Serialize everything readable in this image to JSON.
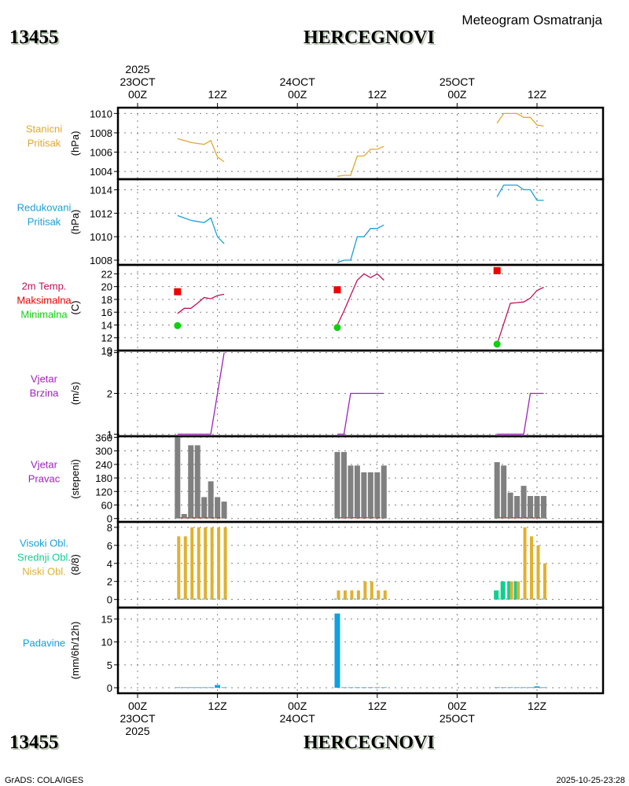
{
  "header": {
    "station_id": "13455",
    "station_name": "HERCEGNOVI",
    "subtitle": "Meteogram Osmatranja"
  },
  "footer": {
    "credit": "GrADS: COLA/IGES",
    "timestamp": "2025-10-25-23:28"
  },
  "colors": {
    "stanicni": "#e0a830",
    "redukovani": "#1aa0d8",
    "temp": "#c0105a",
    "max": "#f00000",
    "min": "#10d010",
    "wind": "#a020c0",
    "dir_bar": "#808080",
    "dir_line": "#e02020",
    "cloud_high": "#1aa0d8",
    "cloud_mid": "#10d090",
    "cloud_low": "#e0b030",
    "precip": "#10a0e0",
    "title_shadow": "#b8c8b0"
  },
  "chart_data": {
    "type": "line",
    "title": "Meteogram Osmatranja",
    "x_axis": {
      "unit": "hours since 2025-10-23 00Z",
      "range": [
        -3,
        70
      ],
      "top_ticks": [
        {
          "hour": 0,
          "lines": [
            "2025",
            "23OCT",
            "00Z"
          ]
        },
        {
          "hour": 12,
          "lines": [
            "",
            "",
            "12Z"
          ]
        },
        {
          "hour": 24,
          "lines": [
            "",
            "24OCT",
            "00Z"
          ]
        },
        {
          "hour": 36,
          "lines": [
            "",
            "",
            "12Z"
          ]
        },
        {
          "hour": 48,
          "lines": [
            "",
            "25OCT",
            "00Z"
          ]
        },
        {
          "hour": 60,
          "lines": [
            "",
            "",
            "12Z"
          ]
        }
      ],
      "bottom_ticks": [
        {
          "hour": 0,
          "lines": [
            "00Z",
            "23OCT",
            "2025"
          ]
        },
        {
          "hour": 12,
          "lines": [
            "12Z",
            "",
            ""
          ]
        },
        {
          "hour": 24,
          "lines": [
            "00Z",
            "24OCT",
            ""
          ]
        },
        {
          "hour": 36,
          "lines": [
            "12Z",
            "",
            ""
          ]
        },
        {
          "hour": 48,
          "lines": [
            "00Z",
            "25OCT",
            ""
          ]
        },
        {
          "hour": 60,
          "lines": [
            "12Z",
            "",
            ""
          ]
        }
      ]
    },
    "hours": [
      6,
      7,
      8,
      9,
      10,
      11,
      12,
      13,
      30,
      31,
      32,
      33,
      34,
      35,
      36,
      37,
      54,
      55,
      56,
      57,
      58,
      59,
      60,
      61
    ],
    "panels": [
      {
        "id": "stanicni",
        "labels": [
          "Stanicni",
          "Pritisak"
        ],
        "label_colors": [
          "stanicni",
          "stanicni"
        ],
        "ylabel": "(hPa)",
        "ylim": [
          1003.2,
          1010.6
        ],
        "yticks": [
          1004,
          1006,
          1008,
          1010
        ],
        "series": [
          {
            "name": "Stanicni Pritisak",
            "kind": "line",
            "color": "stanicni",
            "values": [
              1007.4,
              1007.2,
              1007.0,
              1006.9,
              1006.8,
              1007.2,
              1005.5,
              1005.0,
              1003.5,
              1003.6,
              1003.6,
              1005.6,
              1005.6,
              1006.3,
              1006.3,
              1006.6,
              1009.0,
              1010.0,
              1010.0,
              1010.0,
              1009.6,
              1009.6,
              1008.8,
              1008.7
            ]
          }
        ]
      },
      {
        "id": "redukovani",
        "labels": [
          "Redukovani",
          "Pritisak"
        ],
        "label_colors": [
          "redukovani",
          "redukovani"
        ],
        "ylabel": "(hPa)",
        "ylim": [
          1007.6,
          1014.9
        ],
        "yticks": [
          1008,
          1010,
          1012,
          1014
        ],
        "series": [
          {
            "name": "Redukovani Pritisak",
            "kind": "line",
            "color": "redukovani",
            "values": [
              1011.8,
              1011.6,
              1011.4,
              1011.3,
              1011.2,
              1011.6,
              1010.0,
              1009.4,
              1007.8,
              1008.0,
              1008.0,
              1010.0,
              1010.0,
              1010.7,
              1010.7,
              1011.0,
              1013.4,
              1014.4,
              1014.4,
              1014.4,
              1014.0,
              1014.0,
              1013.1,
              1013.1
            ]
          }
        ]
      },
      {
        "id": "temp",
        "labels": [
          "2m Temp.",
          "Maksimalna",
          "Minimalna"
        ],
        "label_colors": [
          "temp",
          "max",
          "min"
        ],
        "ylabel": "(C)",
        "ylim": [
          10,
          23.4
        ],
        "yticks": [
          10,
          12,
          14,
          16,
          18,
          20,
          22
        ],
        "series": [
          {
            "name": "2m Temp.",
            "kind": "line",
            "color": "temp",
            "values": [
              15.8,
              16.6,
              16.6,
              17.4,
              18.3,
              18.1,
              18.6,
              18.8,
              14.0,
              16.2,
              18.6,
              21.0,
              22.0,
              21.4,
              22.0,
              21.0,
              11.0,
              14.2,
              17.4,
              17.5,
              17.6,
              18.2,
              19.4,
              19.9
            ]
          },
          {
            "name": "Maksimalna",
            "kind": "square",
            "color": "max",
            "points": [
              {
                "hour": 6,
                "value": 19.2
              },
              {
                "hour": 30,
                "value": 19.5
              },
              {
                "hour": 54,
                "value": 22.5
              }
            ]
          },
          {
            "name": "Minimalna",
            "kind": "dot",
            "color": "min",
            "points": [
              {
                "hour": 6,
                "value": 13.9
              },
              {
                "hour": 30,
                "value": 13.6
              },
              {
                "hour": 54,
                "value": 11.0
              }
            ]
          }
        ]
      },
      {
        "id": "wind_speed",
        "labels": [
          "Vjetar",
          "Brzina"
        ],
        "label_colors": [
          "wind",
          "wind"
        ],
        "ylabel": "(m/s)",
        "ylim": [
          0.95,
          3.05
        ],
        "yticks": [
          1,
          2,
          3
        ],
        "series": [
          {
            "name": "Vjetar Brzina",
            "kind": "line",
            "color": "wind",
            "values": [
              1,
              1,
              1,
              1,
              1,
              1,
              2,
              3,
              1,
              1,
              2,
              2,
              2,
              2,
              2,
              2,
              1,
              1,
              1,
              1,
              1,
              2,
              2,
              2
            ]
          }
        ]
      },
      {
        "id": "wind_dir",
        "labels": [
          "Vjetar",
          "Pravac"
        ],
        "label_colors": [
          "wind",
          "wind"
        ],
        "ylabel": "(stepeni)",
        "ylim": [
          -15,
          365
        ],
        "yticks": [
          0,
          60,
          120,
          180,
          240,
          300,
          360
        ],
        "series": [
          {
            "name": "Vjetar Pravac",
            "kind": "bar",
            "color": "dir_bar",
            "values": [
              360,
              20,
              325,
              325,
              95,
              165,
              95,
              75,
              295,
              295,
              235,
              235,
              205,
              205,
              205,
              235,
              250,
              235,
              115,
              100,
              145,
              100,
              100,
              100
            ]
          }
        ]
      },
      {
        "id": "clouds",
        "labels": [
          "Visoki Obl.",
          "Srednji Obl.",
          "Niski Obl."
        ],
        "label_colors": [
          "cloud_high",
          "cloud_mid",
          "cloud_low"
        ],
        "ylabel": "(8/8)",
        "ylim": [
          -0.9,
          8.6
        ],
        "yticks": [
          0,
          2,
          4,
          6,
          8
        ],
        "series": [
          {
            "name": "Visoki Obl.",
            "kind": "bar",
            "color": "cloud_high",
            "values": [
              0,
              0,
              0,
              0,
              0,
              0,
              0,
              0,
              0,
              0,
              0,
              0,
              0,
              0,
              0,
              0,
              0,
              0,
              0,
              0,
              0,
              0,
              0,
              0
            ]
          },
          {
            "name": "Srednji Obl.",
            "kind": "bar",
            "color": "cloud_mid",
            "values": [
              0,
              0,
              0,
              0,
              0,
              0,
              0,
              0,
              0,
              0,
              0,
              0,
              0,
              0,
              0,
              0,
              1,
              2,
              2,
              2,
              0,
              0,
              0,
              0
            ]
          },
          {
            "name": "Niski Obl.",
            "kind": "bar",
            "color": "cloud_low",
            "values": [
              7,
              7,
              8,
              8,
              8,
              8,
              8,
              8,
              1,
              1,
              1,
              1,
              2,
              2,
              1,
              1,
              0,
              0,
              2,
              2,
              8,
              7,
              6,
              4
            ]
          }
        ]
      },
      {
        "id": "precip",
        "labels": [
          "Padavine"
        ],
        "label_colors": [
          "precip"
        ],
        "ylabel": "(mm/6h/12h)",
        "ylim": [
          -1.2,
          17.5
        ],
        "yticks": [
          0,
          5,
          10,
          15
        ],
        "series": [
          {
            "name": "Padavine",
            "kind": "bar",
            "color": "precip",
            "values": [
              0.1,
              0.1,
              0.1,
              0.1,
              0.1,
              0.1,
              0.6,
              0.1,
              16.2,
              0.1,
              0.1,
              0.1,
              0.1,
              0.1,
              0.1,
              0.1,
              0.1,
              0.1,
              0.1,
              0.1,
              0.1,
              0.1,
              0.3,
              0.1
            ]
          }
        ]
      }
    ]
  }
}
